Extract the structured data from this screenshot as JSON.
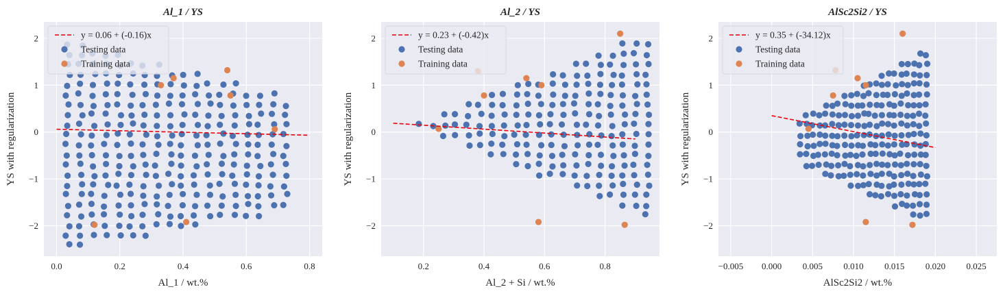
{
  "chart_data": [
    {
      "type": "scatter",
      "title": "Al_1 / YS",
      "xlabel": "Al_1 / wt.%",
      "ylabel": "YS with regularization",
      "xlim": [
        -0.04,
        0.84
      ],
      "ylim": [
        -2.65,
        2.35
      ],
      "xticks": [
        0.0,
        0.2,
        0.4,
        0.6,
        0.8
      ],
      "xtick_labels": [
        "0.0",
        "0.2",
        "0.4",
        "0.6",
        "0.8"
      ],
      "yticks": [
        -2,
        -1,
        0,
        1,
        2
      ],
      "ytick_labels": [
        "−2",
        "−1",
        "0",
        "1",
        "2"
      ],
      "grid": true,
      "legend_position": "top-left",
      "fit_line": {
        "label": "y = 0.06 + (-0.16)x",
        "intercept": 0.06,
        "slope": -0.16,
        "x_range": [
          0.0,
          0.8
        ],
        "color": "#e8000b"
      },
      "series": [
        {
          "name": "Testing data",
          "color": "#4c72b0",
          "grid_gen": {
            "x_start": 0.035,
            "x_step": 0.0405,
            "x_count": 18,
            "y_start": -2.42,
            "y_step": 0.2145,
            "y_count": 21,
            "upper_slope": -1.83,
            "upper_start": 2.05,
            "lower_slope": 1.18,
            "lower_start": -2.55,
            "jitter": 0.06
          }
        },
        {
          "name": "Training data",
          "color": "#dd8452",
          "points": [
            [
              0.12,
              -1.98
            ],
            [
              0.41,
              -1.92
            ],
            [
              0.37,
              1.15
            ],
            [
              0.54,
              1.32
            ],
            [
              0.55,
              0.78
            ],
            [
              0.69,
              0.06
            ],
            [
              0.33,
              1.0
            ]
          ]
        }
      ]
    },
    {
      "type": "scatter",
      "title": "Al_2 / YS",
      "xlabel": "Al_2 + Si / wt.%",
      "ylabel": "YS with regularization",
      "xlim": [
        0.06,
        0.98
      ],
      "ylim": [
        -2.65,
        2.35
      ],
      "xticks": [
        0.2,
        0.4,
        0.6,
        0.8
      ],
      "xtick_labels": [
        "0.2",
        "0.4",
        "0.6",
        "0.8"
      ],
      "yticks": [
        -2,
        -1,
        0,
        1,
        2
      ],
      "ytick_labels": [
        "−2",
        "−1",
        "0",
        "1",
        "2"
      ],
      "grid": true,
      "legend_position": "top-left",
      "fit_line": {
        "label": "y = 0.23 + (-0.42)x",
        "intercept": 0.23,
        "slope": -0.42,
        "x_range": [
          0.1,
          0.9
        ],
        "color": "#e8000b"
      },
      "series": [
        {
          "name": "Testing data",
          "color": "#4c72b0",
          "grid_gen": {
            "x_start": 0.15,
            "x_step": 0.0395,
            "x_count": 21,
            "y_start": -2.42,
            "y_step": 0.2145,
            "y_count": 21,
            "upper_slope": 2.6,
            "upper_start": -0.3,
            "upper_cap": 1.95,
            "lower_slope": -2.6,
            "lower_start": 0.6,
            "lower_cap": -2.45,
            "jitter": 0.06
          }
        },
        {
          "name": "Training data",
          "color": "#dd8452",
          "points": [
            [
              0.25,
              0.07
            ],
            [
              0.38,
              1.3
            ],
            [
              0.4,
              0.78
            ],
            [
              0.54,
              1.15
            ],
            [
              0.59,
              1.0
            ],
            [
              0.58,
              -1.92
            ],
            [
              0.85,
              2.1
            ],
            [
              0.865,
              -1.98
            ]
          ]
        }
      ]
    },
    {
      "type": "scatter",
      "title": "AlSc2Si2 / YS",
      "xlabel": "AlSc2Si2 / wt.%",
      "ylabel": "YS with regularization",
      "xlim": [
        -0.0065,
        0.0275
      ],
      "ylim": [
        -2.65,
        2.35
      ],
      "xticks": [
        -0.005,
        0.0,
        0.005,
        0.01,
        0.015,
        0.02,
        0.025
      ],
      "xtick_labels": [
        "−0.005",
        "0.000",
        "0.005",
        "0.010",
        "0.015",
        "0.020",
        "0.025"
      ],
      "yticks": [
        -2,
        -1,
        0,
        1,
        2
      ],
      "ytick_labels": [
        "−2",
        "−1",
        "0",
        "1",
        "2"
      ],
      "grid": true,
      "legend_position": "top-left",
      "fit_line": {
        "label": "y = 0.35 + (-34.12)x",
        "intercept": 0.35,
        "slope": -34.12,
        "x_range": [
          0.0,
          0.02
        ],
        "color": "#e8000b"
      },
      "series": [
        {
          "name": "Testing data",
          "color": "#4c72b0",
          "grid_gen": {
            "x_start": 0.0035,
            "x_step": 0.00077,
            "x_count": 21,
            "y_start": -2.42,
            "y_step": 0.2145,
            "y_count": 21,
            "upper_slope": 95.0,
            "upper_start": 0.0,
            "upper_cap": 2.0,
            "lower_slope": -80.0,
            "lower_start": -0.4,
            "lower_cap": -2.45,
            "jitter": 0.06
          }
        },
        {
          "name": "Training data",
          "color": "#dd8452",
          "points": [
            [
              0.0045,
              0.07
            ],
            [
              0.0075,
              0.78
            ],
            [
              0.0078,
              1.32
            ],
            [
              0.0105,
              1.15
            ],
            [
              0.0115,
              1.0
            ],
            [
              0.0115,
              -1.92
            ],
            [
              0.016,
              2.1
            ],
            [
              0.0172,
              -1.98
            ]
          ]
        }
      ]
    }
  ]
}
